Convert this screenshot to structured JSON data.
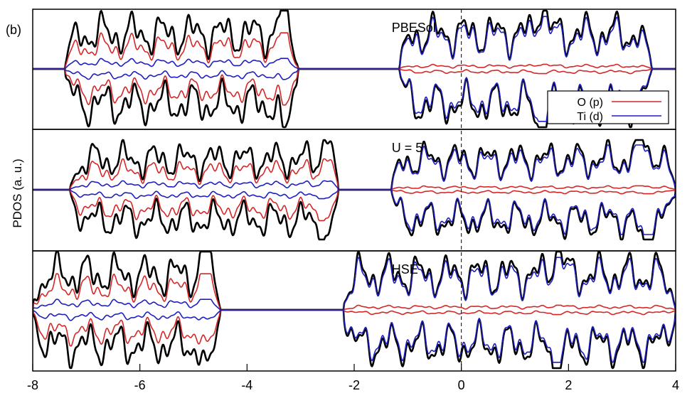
{
  "figure_label": "(b)",
  "chart_data": {
    "type": "line",
    "ylabel": "PDOS (a. u.)",
    "xlim": [
      -8,
      4
    ],
    "xticks": [
      -8,
      -6,
      -4,
      -2,
      0,
      2,
      4
    ],
    "fermi_level": 0,
    "grid": false,
    "legend": {
      "placement": "top-right of first panel",
      "entries": [
        {
          "name": "O (p)",
          "color": "#d62728"
        },
        {
          "name": "Ti (d)",
          "color": "#1f1fbf"
        }
      ]
    },
    "total_color": "#000000",
    "panels": [
      {
        "label": "PBESol",
        "valence_band": [
          -7.4,
          -3.05
        ],
        "conduction_band": [
          -1.15,
          3.55
        ],
        "valence_peak_x": -3.3,
        "conduction_peak_x": 1.5
      },
      {
        "label": "U = 5",
        "valence_band": [
          -7.3,
          -2.3
        ],
        "conduction_band": [
          -1.3,
          4.0
        ],
        "valence_peak_x": -2.5,
        "conduction_peak_x": 3.4
      },
      {
        "label": "HSE",
        "valence_band": [
          -8.0,
          -4.5
        ],
        "conduction_band": [
          -2.2,
          4.0
        ],
        "valence_peak_x": -4.75,
        "conduction_peak_x": 1.8
      }
    ]
  }
}
